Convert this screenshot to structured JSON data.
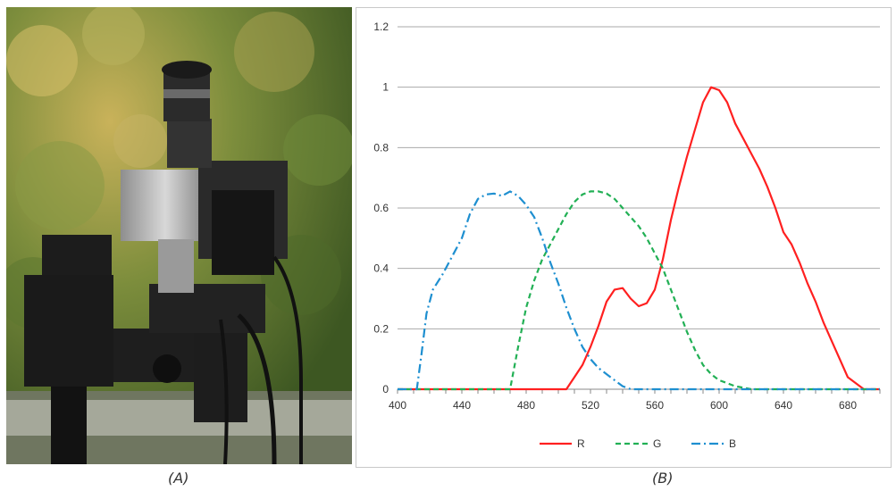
{
  "figure": {
    "panel_a": {
      "caption": "(A)",
      "content": "photo-of-imaging-camera-outdoors"
    },
    "panel_b": {
      "caption": "(B)"
    }
  },
  "chart_data": {
    "type": "line",
    "title": "",
    "xlabel": "",
    "ylabel": "",
    "xlim": [
      400,
      700
    ],
    "ylim": [
      0,
      1.2
    ],
    "x_ticks": [
      400,
      440,
      480,
      520,
      560,
      600,
      640,
      680
    ],
    "y_ticks": [
      0,
      0.2,
      0.4,
      0.6,
      0.8,
      1,
      1.2
    ],
    "y_tick_labels": [
      "0",
      "0.2",
      "0.4",
      "0.6",
      "0.8",
      "1",
      "1.2"
    ],
    "grid": "horizontal",
    "legend": "bottom-center",
    "series": [
      {
        "name": "R",
        "color": "#ff2020",
        "style": "solid",
        "points": [
          [
            400,
            0
          ],
          [
            505,
            0
          ],
          [
            510,
            0.04
          ],
          [
            515,
            0.08
          ],
          [
            520,
            0.14
          ],
          [
            525,
            0.21
          ],
          [
            530,
            0.29
          ],
          [
            535,
            0.33
          ],
          [
            540,
            0.335
          ],
          [
            545,
            0.3
          ],
          [
            550,
            0.275
          ],
          [
            555,
            0.285
          ],
          [
            560,
            0.33
          ],
          [
            565,
            0.43
          ],
          [
            570,
            0.56
          ],
          [
            575,
            0.67
          ],
          [
            580,
            0.77
          ],
          [
            585,
            0.86
          ],
          [
            590,
            0.95
          ],
          [
            595,
            1.0
          ],
          [
            600,
            0.99
          ],
          [
            605,
            0.95
          ],
          [
            610,
            0.88
          ],
          [
            615,
            0.83
          ],
          [
            620,
            0.78
          ],
          [
            625,
            0.73
          ],
          [
            630,
            0.67
          ],
          [
            635,
            0.6
          ],
          [
            640,
            0.52
          ],
          [
            645,
            0.48
          ],
          [
            650,
            0.42
          ],
          [
            655,
            0.35
          ],
          [
            660,
            0.29
          ],
          [
            665,
            0.22
          ],
          [
            670,
            0.16
          ],
          [
            675,
            0.1
          ],
          [
            680,
            0.04
          ],
          [
            685,
            0.02
          ],
          [
            690,
            0.0
          ],
          [
            700,
            0
          ]
        ]
      },
      {
        "name": "G",
        "color": "#22b055",
        "style": "dashed",
        "points": [
          [
            400,
            0
          ],
          [
            470,
            0
          ],
          [
            475,
            0.14
          ],
          [
            480,
            0.27
          ],
          [
            485,
            0.36
          ],
          [
            490,
            0.43
          ],
          [
            495,
            0.48
          ],
          [
            500,
            0.53
          ],
          [
            505,
            0.58
          ],
          [
            510,
            0.62
          ],
          [
            515,
            0.645
          ],
          [
            520,
            0.655
          ],
          [
            525,
            0.655
          ],
          [
            530,
            0.648
          ],
          [
            535,
            0.63
          ],
          [
            540,
            0.6
          ],
          [
            545,
            0.57
          ],
          [
            550,
            0.54
          ],
          [
            555,
            0.5
          ],
          [
            560,
            0.45
          ],
          [
            565,
            0.4
          ],
          [
            570,
            0.33
          ],
          [
            575,
            0.26
          ],
          [
            580,
            0.19
          ],
          [
            585,
            0.13
          ],
          [
            590,
            0.08
          ],
          [
            595,
            0.05
          ],
          [
            600,
            0.03
          ],
          [
            605,
            0.02
          ],
          [
            610,
            0.01
          ],
          [
            620,
            0.0
          ],
          [
            700,
            0
          ]
        ]
      },
      {
        "name": "B",
        "color": "#1e8fd0",
        "style": "dashdot",
        "points": [
          [
            400,
            0
          ],
          [
            412,
            0
          ],
          [
            415,
            0.12
          ],
          [
            418,
            0.25
          ],
          [
            422,
            0.33
          ],
          [
            428,
            0.38
          ],
          [
            434,
            0.44
          ],
          [
            440,
            0.5
          ],
          [
            445,
            0.58
          ],
          [
            450,
            0.63
          ],
          [
            455,
            0.645
          ],
          [
            460,
            0.648
          ],
          [
            465,
            0.64
          ],
          [
            470,
            0.655
          ],
          [
            475,
            0.64
          ],
          [
            480,
            0.61
          ],
          [
            485,
            0.57
          ],
          [
            490,
            0.5
          ],
          [
            495,
            0.42
          ],
          [
            500,
            0.35
          ],
          [
            505,
            0.27
          ],
          [
            510,
            0.2
          ],
          [
            515,
            0.14
          ],
          [
            520,
            0.1
          ],
          [
            525,
            0.07
          ],
          [
            530,
            0.05
          ],
          [
            535,
            0.03
          ],
          [
            540,
            0.01
          ],
          [
            545,
            0.0
          ],
          [
            700,
            0
          ]
        ]
      }
    ]
  }
}
